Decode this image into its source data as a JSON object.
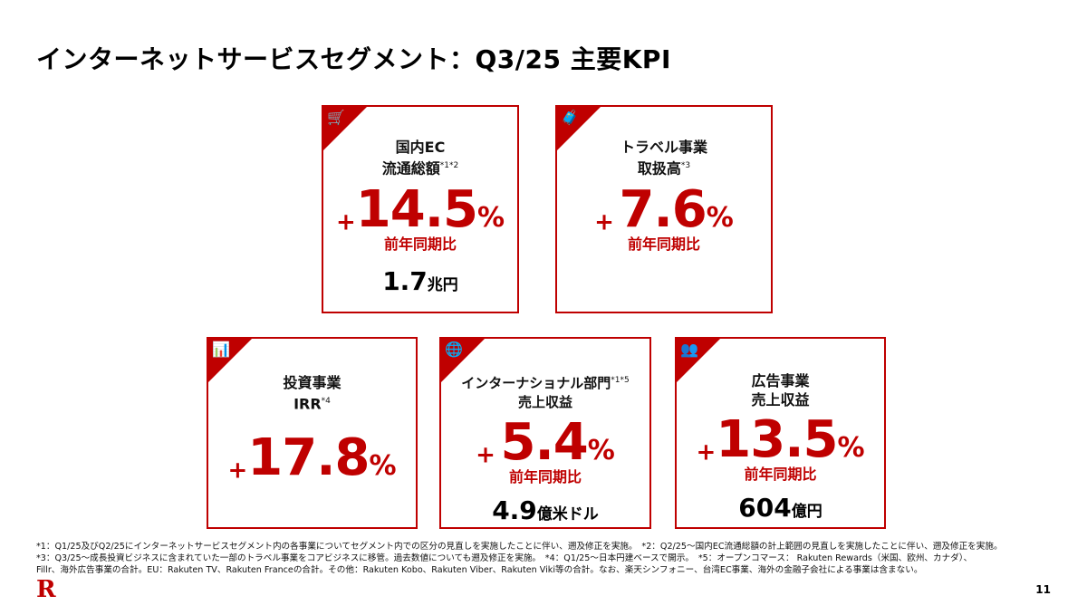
{
  "title": "インターネットサービスセグメント：Q3/25 主要KPI",
  "accent": "#bf0000",
  "cards": [
    {
      "icon": "shopping-cart-icon",
      "label1": "国内EC",
      "label2": "流通総額",
      "sup": "*1*2",
      "plus": "+",
      "value": "14.5",
      "pct": "%",
      "yoy": "前年同期比",
      "sub_num": "1.7",
      "sub_unit": "兆円"
    },
    {
      "icon": "suitcase-icon",
      "label1": "トラベル事業",
      "label2": "取扱高",
      "sup": "*3",
      "plus": "+",
      "value": "7.6",
      "pct": "%",
      "yoy": "前年同期比"
    },
    {
      "icon": "bar-chart-icon",
      "label1": "投資事業",
      "label2": "IRR",
      "sup": "*4",
      "plus": "+",
      "value": "17.8",
      "pct": "%"
    },
    {
      "icon": "globe-icon",
      "label1": "インターナショナル部門",
      "sup1": "*1*5",
      "label2": "売上収益",
      "plus": "+",
      "value": "5.4",
      "pct": "%",
      "yoy": "前年同期比",
      "sub_num": "4.9",
      "sub_unit": "億米ドル"
    },
    {
      "icon": "audience-icon",
      "label1": "広告事業",
      "label2": "売上収益",
      "plus": "+",
      "value": "13.5",
      "pct": "%",
      "yoy": "前年同期比",
      "sub_num": "604",
      "sub_unit": "億円"
    }
  ],
  "footnotes": [
    "*1：Q1/25及びQ2/25にインターネットサービスセグメント内の各事業についてセグメント内での区分の見直しを実施したことに伴い、遡及修正を実施。　*2：Q2/25～国内EC流通総額の計上範囲の見直しを実施したことに伴い、遡及修正を実施。",
    "*3：Q3/25～成長投資ビジネスに含まれていた一部のトラベル事業をコアビジネスに移管。過去数値についても遡及修正を実施。　*4：Q1/25～日本円建ベースで開示。　*5：オープンコマース： Rakuten Rewards（米国、欧州、カナダ）、",
    "Fillr、海外広告事業の合計。EU：Rakuten TV、Rakuten Franceの合計。その他：Rakuten Kobo、Rakuten Viber、Rakuten Viki等の合計。なお、楽天シンフォニー、台湾EC事業、海外の金融子会社による事業は含まない。"
  ],
  "logo": "R",
  "page_number": "11"
}
